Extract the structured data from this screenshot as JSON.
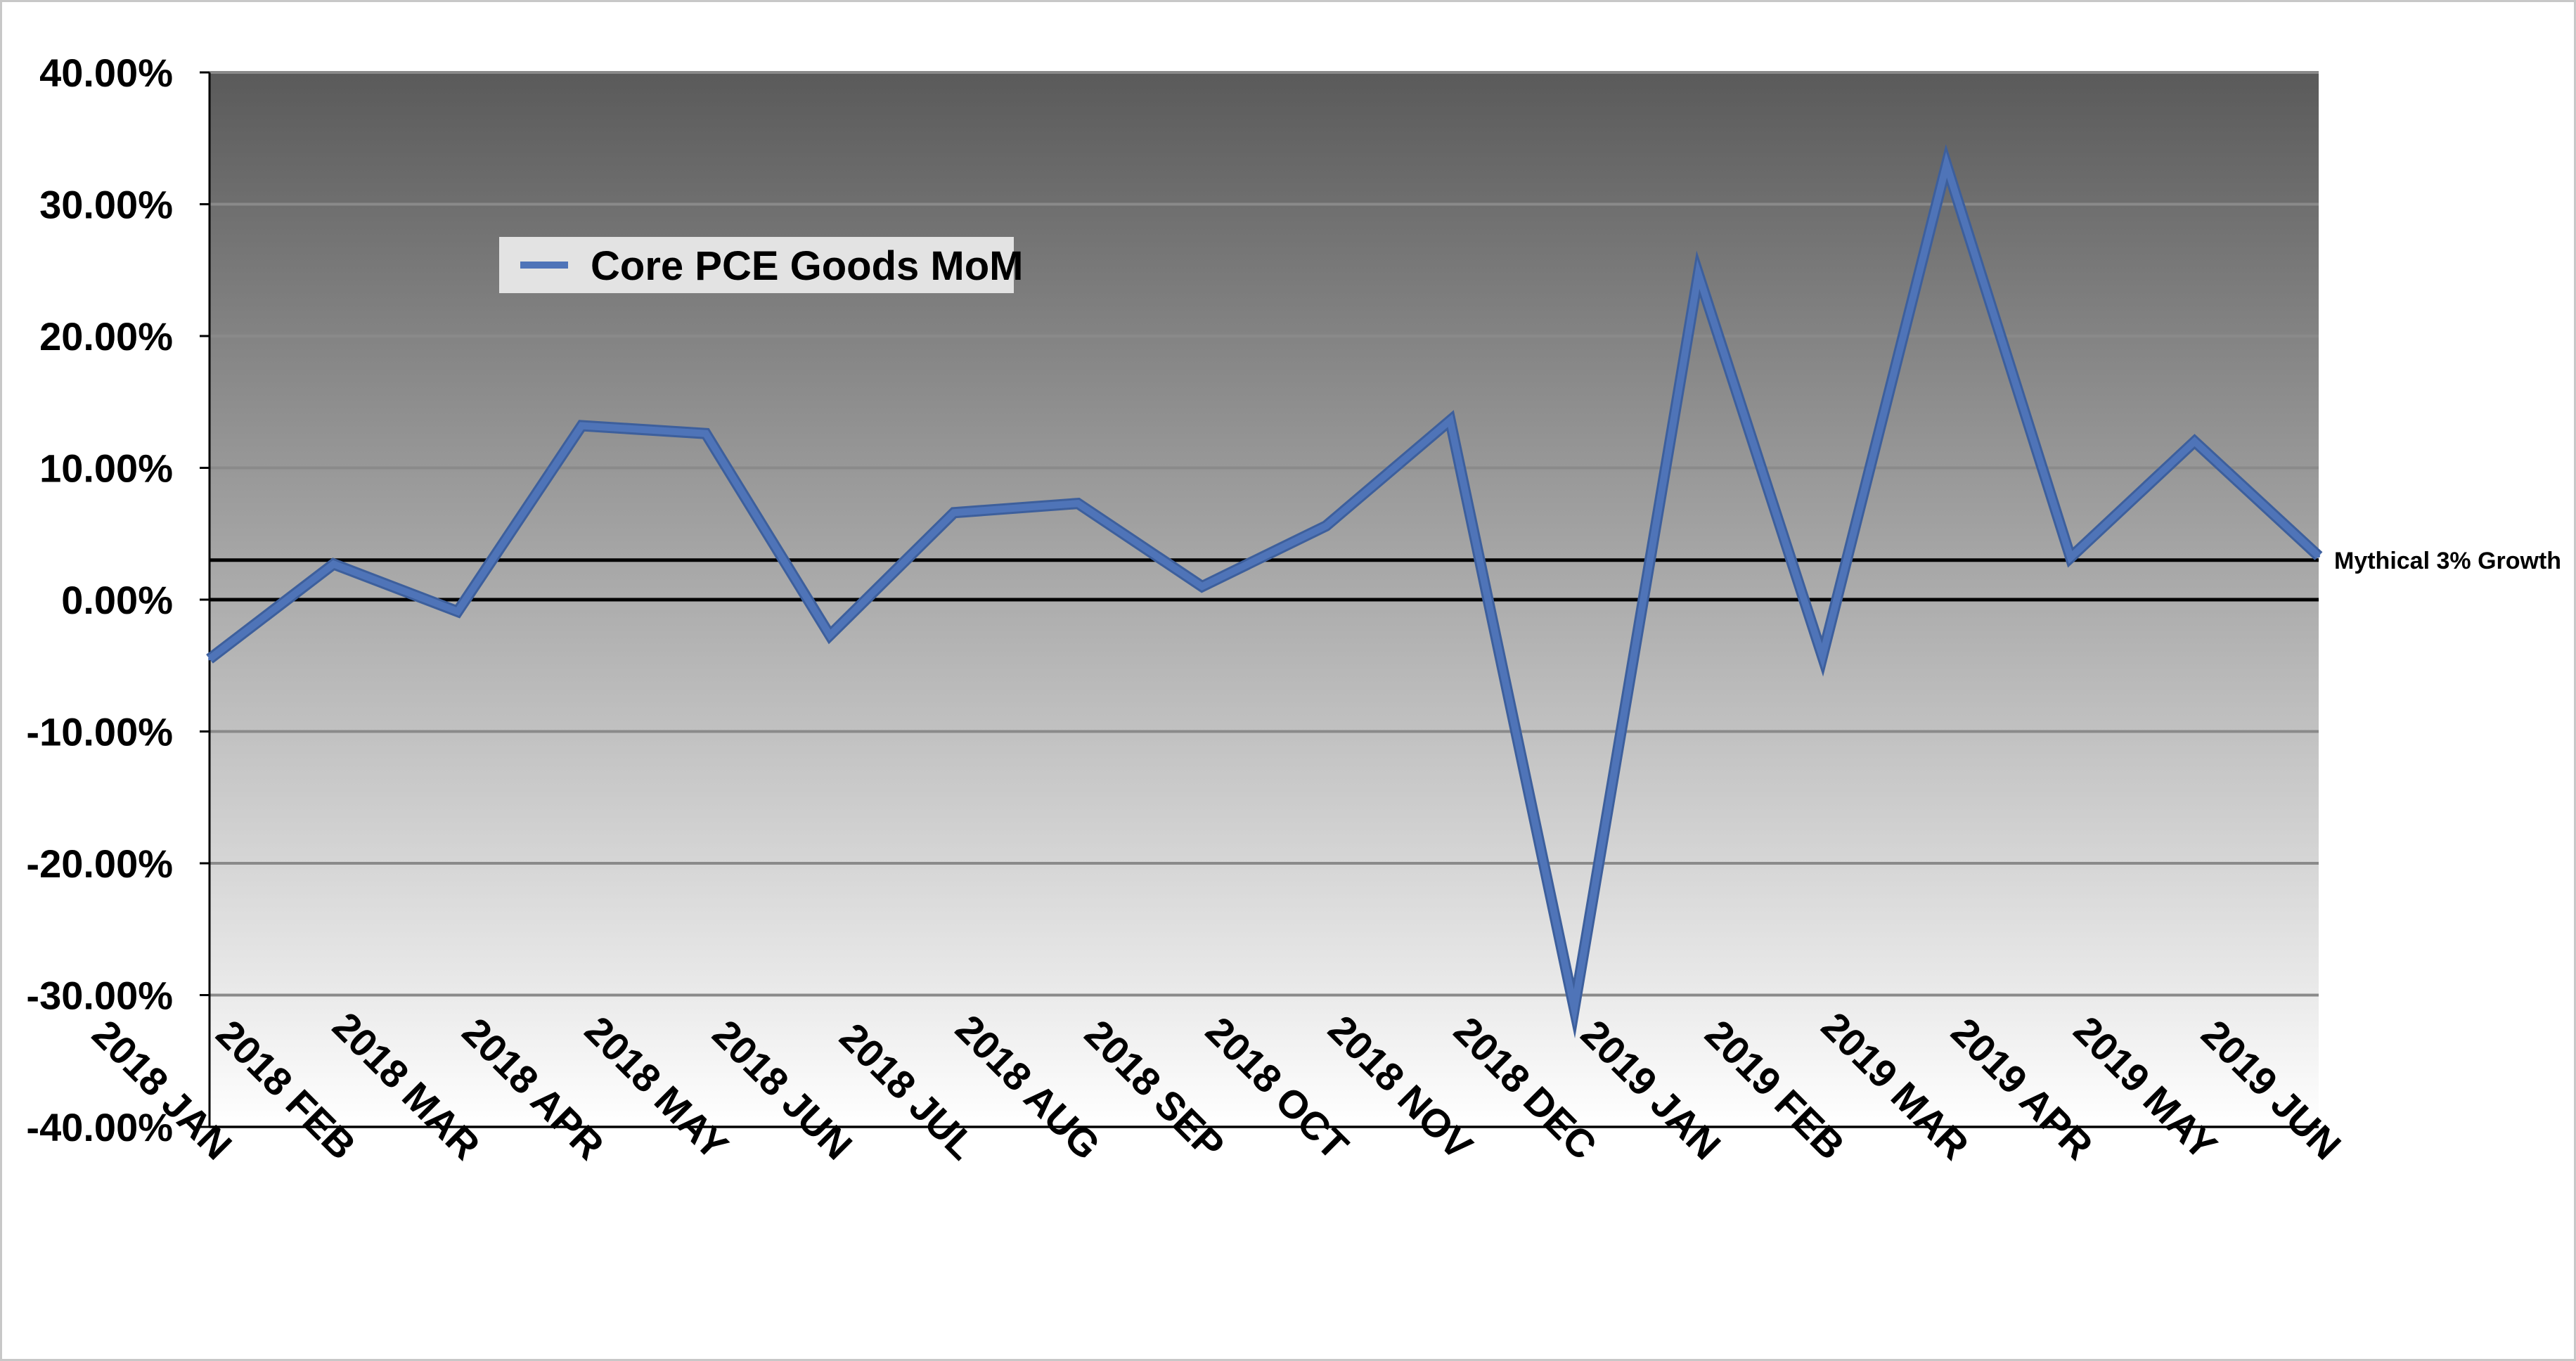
{
  "chart_data": {
    "type": "line",
    "title": "",
    "xlabel": "",
    "ylabel": "",
    "categories": [
      "2018 JAN",
      "2018 FEB",
      "2018 MAR",
      "2018 APR",
      "2018 MAY",
      "2018 JUN",
      "2018 JUL",
      "2018 AUG",
      "2018 SEP",
      "2018 OCT",
      "2018 NOV",
      "2018 DEC",
      "2019 JAN",
      "2019 FEB",
      "2019 MAR",
      "2019 APR",
      "2019 MAY",
      "2019 JUN"
    ],
    "series": [
      {
        "name": "Core PCE Goods MoM",
        "color": "#4f74b8",
        "values": [
          -4.5,
          2.7,
          -0.9,
          13.2,
          12.6,
          -2.7,
          6.6,
          7.3,
          1.0,
          5.6,
          13.6,
          -31.0,
          24.7,
          -4.3,
          33.0,
          3.2,
          12.0,
          3.3
        ]
      }
    ],
    "ylim": [
      -40,
      40
    ],
    "yticks": [
      40,
      30,
      20,
      10,
      0,
      -10,
      -20,
      -30,
      -40
    ],
    "ytick_labels": [
      "40.00%",
      "30.00%",
      "20.00%",
      "10.00%",
      "0.00%",
      "-10.00%",
      "-20.00%",
      "-30.00%",
      "-40.00%"
    ],
    "reference_lines": [
      {
        "value": 3,
        "label": "Mythical 3% Growth"
      },
      {
        "value": 0,
        "label": ""
      }
    ],
    "grid": true,
    "legend_position": "top-left",
    "background_gradient": [
      "#5a5a5a",
      "#ffffff"
    ]
  }
}
